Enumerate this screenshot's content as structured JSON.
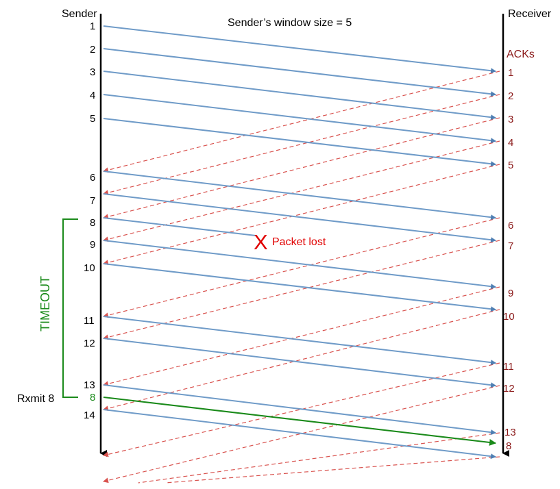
{
  "title": "Sender’s  window size = 5",
  "sender_label": "Sender",
  "receiver_label": "Receiver",
  "acks_label": "ACKs",
  "lost_mark": "X",
  "lost_label": "Packet lost",
  "timeout_label": "TIMEOUT",
  "rxmit_label": "Rxmit 8",
  "colors": {
    "axis": "#000000",
    "packet": "#6f9bc8",
    "ack": "#d9534f",
    "ack_text": "#8b1a1a",
    "lost": "#e00000",
    "retransmit": "#1a8a1a",
    "text": "#000000"
  },
  "sender_labels": [
    "1",
    "2",
    "3",
    "4",
    "5",
    "6",
    "7",
    "8",
    "9",
    "10",
    "11",
    "12",
    "13",
    "8",
    "14"
  ],
  "ack_labels": [
    "1",
    "2",
    "3",
    "4",
    "5",
    "6",
    "7",
    "9",
    "10",
    "11",
    "12",
    "13",
    "8"
  ]
}
